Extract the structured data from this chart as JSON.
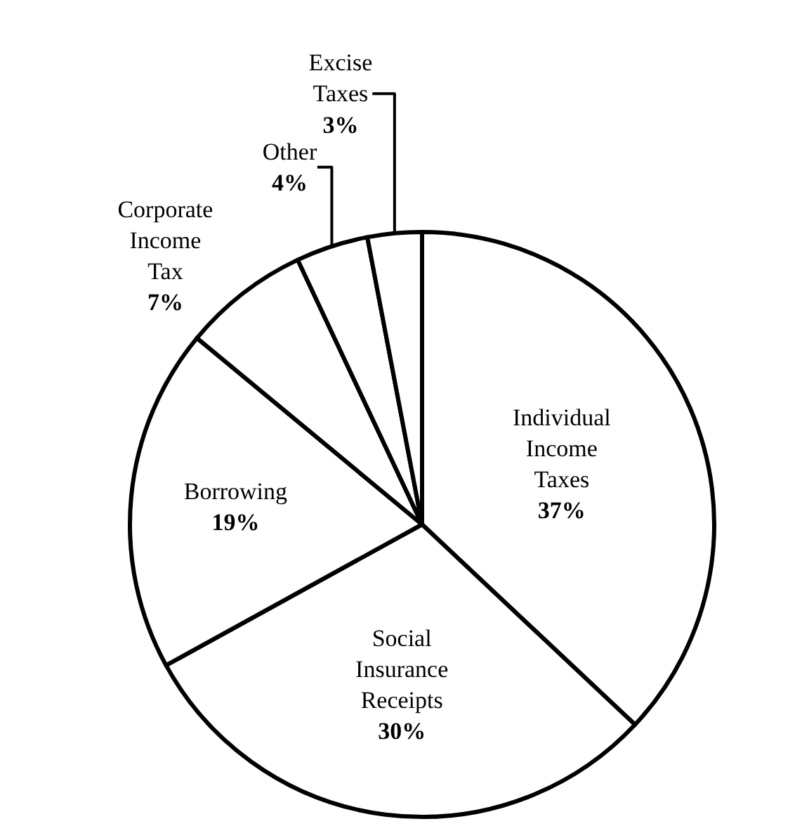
{
  "chart_data": {
    "type": "pie",
    "categories": [
      "Individual Income Taxes",
      "Social Insurance Receipts",
      "Borrowing",
      "Corporate Income Tax",
      "Other",
      "Excise Taxes"
    ],
    "values": [
      37,
      30,
      19,
      7,
      4,
      3
    ],
    "value_labels": [
      "37%",
      "30%",
      "19%",
      "7%",
      "4%",
      "3%"
    ],
    "colors": [
      "#ffffff",
      "#ffffff",
      "#ffffff",
      "#ffffff",
      "#ffffff",
      "#ffffff"
    ],
    "legend": false
  }
}
